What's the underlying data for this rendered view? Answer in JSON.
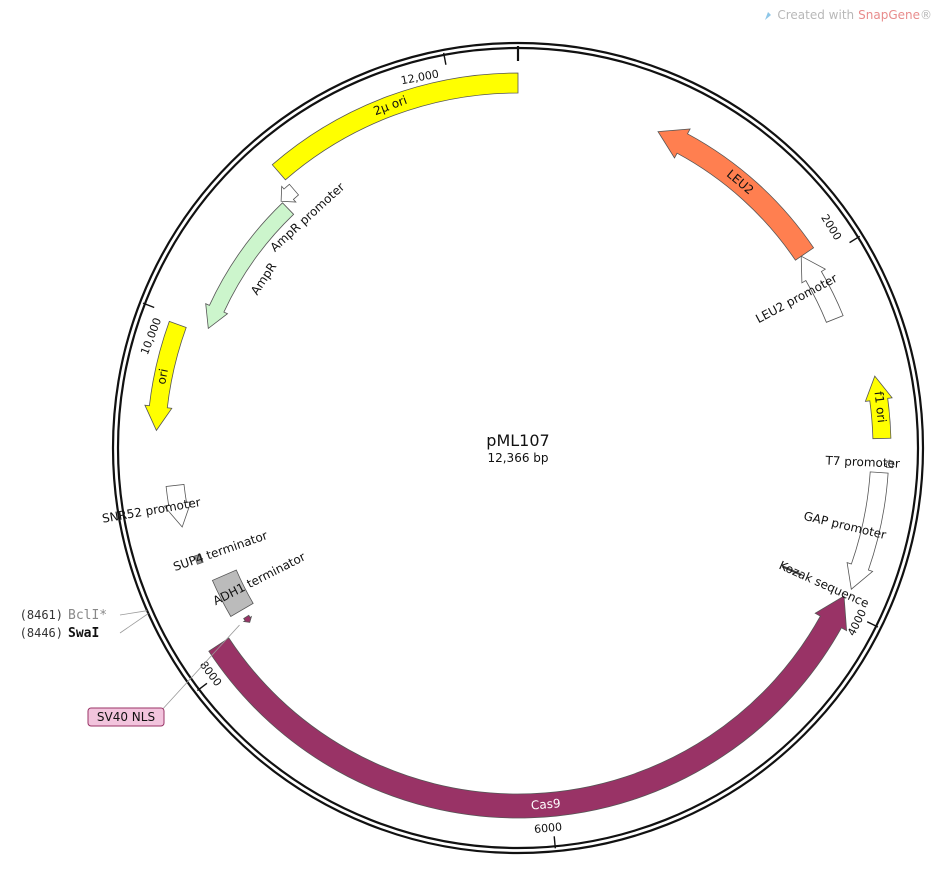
{
  "watermark": {
    "prefix": "Created with",
    "brand": "SnapGene",
    "suffix": "®"
  },
  "plasmid": {
    "name": "pML107",
    "length_label": "12,366 bp",
    "length_bp": 12366
  },
  "ticks": [
    {
      "bp": 0,
      "label": ""
    },
    {
      "bp": 2000,
      "label": "2000"
    },
    {
      "bp": 4000,
      "label": "4000"
    },
    {
      "bp": 6000,
      "label": "6000"
    },
    {
      "bp": 8000,
      "label": "8000"
    },
    {
      "bp": 10000,
      "label": "10,000"
    },
    {
      "bp": 12000,
      "label": "12,000"
    }
  ],
  "features": [
    {
      "id": "two-micron-ori",
      "name": "2μ ori",
      "start": 10960,
      "end": 12366,
      "dir": "none",
      "color": "#ffff00",
      "text_color": "#111111",
      "label_inside": true
    },
    {
      "id": "ampr-promoter",
      "name": "AmpR promoter",
      "start": 10860,
      "end": 10960,
      "dir": "rev",
      "color": "#ffffff",
      "text_color": "#111111",
      "label_inside": false
    },
    {
      "id": "ampr",
      "name": "AmpR",
      "start": 10000,
      "end": 10860,
      "dir": "rev",
      "color": "#ccf5cc",
      "text_color": "#111111",
      "label_inside": false
    },
    {
      "id": "ori",
      "name": "ori",
      "start": 9370,
      "end": 9960,
      "dir": "rev",
      "color": "#ffff00",
      "text_color": "#111111",
      "label_inside": true
    },
    {
      "id": "snr52-promoter",
      "name": "SNR52 promoter",
      "start": 8820,
      "end": 9060,
      "dir": "rev",
      "color": "#ffffff",
      "text_color": "#111111",
      "label_inside": false
    },
    {
      "id": "sup4-terminator",
      "name": "SUP4 terminator",
      "start": 8590,
      "end": 8640,
      "dir": "none",
      "color": "#999999",
      "text_color": "#111111",
      "label_inside": false
    },
    {
      "id": "adh1-terminator",
      "name": "ADH1 terminator",
      "start": 8230,
      "end": 8470,
      "dir": "none",
      "color": "#bbbbbb",
      "text_color": "#111111",
      "label_inside": false
    },
    {
      "id": "sv40-nls",
      "name": "SV40 NLS",
      "start": 8140,
      "end": 8180,
      "dir": "rev",
      "color": "#993366",
      "text_color": "#111111",
      "label_inside": false
    },
    {
      "id": "cas9",
      "name": "Cas9",
      "start": 3930,
      "end": 8130,
      "dir": "rev",
      "color": "#993366",
      "text_color": "#ffffff",
      "label_inside": true
    },
    {
      "id": "kozak",
      "name": "Kozak sequence",
      "start": 3915,
      "end": 3925,
      "dir": "none",
      "color": "#333333",
      "text_color": "#111111",
      "label_inside": false
    },
    {
      "id": "gap-promoter",
      "name": "GAP promoter",
      "start": 3225,
      "end": 3880,
      "dir": "fwd",
      "color": "#ffffff",
      "text_color": "#111111",
      "label_inside": false
    },
    {
      "id": "t7-promoter",
      "name": "T7 promoter",
      "start": 3155,
      "end": 3195,
      "dir": "rev",
      "color": "#ffffff",
      "text_color": "#111111",
      "label_inside": false
    },
    {
      "id": "f1-ori",
      "name": "f1 ori",
      "start": 2700,
      "end": 3040,
      "dir": "rev",
      "color": "#ffff00",
      "text_color": "#111111",
      "label_inside": true
    },
    {
      "id": "leu2-promoter",
      "name": "LEU2 promoter",
      "start": 1920,
      "end": 2330,
      "dir": "rev",
      "color": "#ffffff",
      "text_color": "#111111",
      "label_inside": false
    },
    {
      "id": "leu2",
      "name": "LEU2",
      "start": 820,
      "end": 1920,
      "dir": "rev",
      "color": "#ff7f50",
      "text_color": "#111111",
      "label_inside": true
    }
  ],
  "enzymes": [
    {
      "id": "bcli",
      "name": "BclI*",
      "position": "(8461)",
      "bp": 8461,
      "color": "#888888",
      "bold": false
    },
    {
      "id": "swai",
      "name": "SwaI",
      "position": "(8446)",
      "bp": 8446,
      "color": "#111111",
      "bold": true
    }
  ],
  "callouts": [
    {
      "id": "sv40-nls-callout",
      "name": "SV40 NLS",
      "bp": 8160,
      "fill": "#f2c4dd",
      "stroke": "#993366"
    }
  ]
}
